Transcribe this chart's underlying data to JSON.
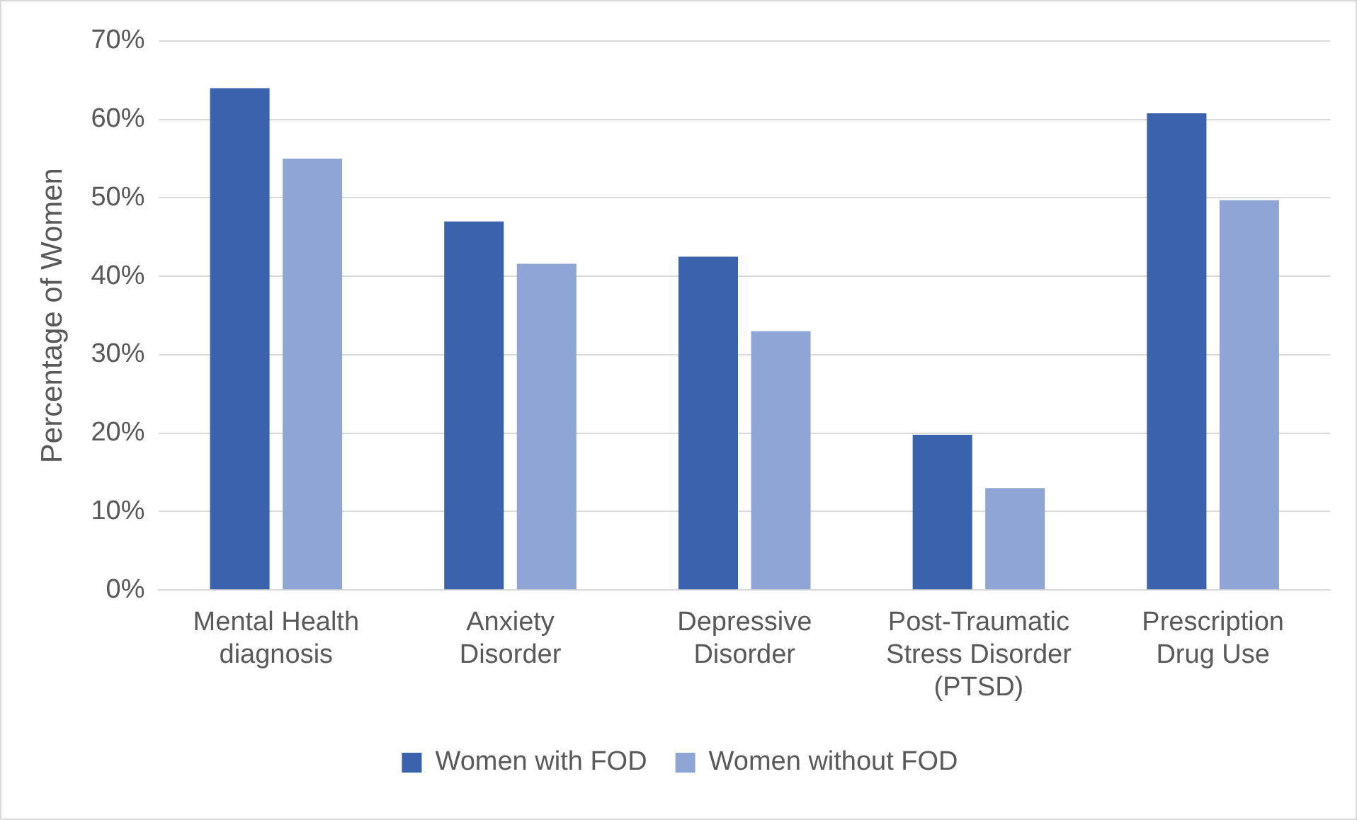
{
  "chart_data": {
    "type": "bar",
    "ylabel": "Percentage of Women",
    "categories": [
      "Mental Health diagnosis",
      "Anxiety Disorder",
      "Depressive Disorder",
      "Post-Traumatic Stress Disorder (PTSD)",
      "Prescription Drug Use"
    ],
    "series": [
      {
        "name": "Women with FOD",
        "color": "#3a62ad",
        "values": [
          64,
          47,
          42.5,
          19.8,
          60.8
        ]
      },
      {
        "name": "Women without FOD",
        "color": "#8fa5d6",
        "values": [
          55,
          41.6,
          33,
          13,
          49.7
        ]
      }
    ],
    "ylim": [
      0,
      70
    ],
    "yticks": [
      {
        "value": 0,
        "label": "0%"
      },
      {
        "value": 10,
        "label": "10%"
      },
      {
        "value": 20,
        "label": "20%"
      },
      {
        "value": 30,
        "label": "30%"
      },
      {
        "value": 40,
        "label": "40%"
      },
      {
        "value": 50,
        "label": "50%"
      },
      {
        "value": 60,
        "label": "60%"
      },
      {
        "value": 70,
        "label": "70%"
      }
    ],
    "grid": "y",
    "legend": "bottom"
  }
}
